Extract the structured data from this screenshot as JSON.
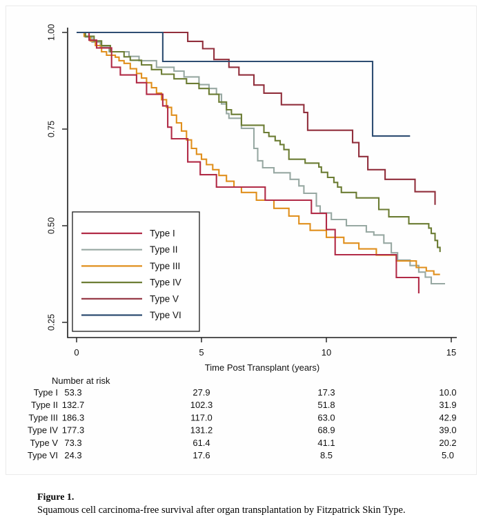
{
  "figure": {
    "caption_label": "Figure 1.",
    "caption_text": "Squamous cell carcinoma-free survival after organ transplantation by Fitzpatrick Skin Type."
  },
  "chart_data": {
    "type": "line",
    "subtype": "kaplan-meier-step-survival",
    "title": "",
    "xlabel": "Time Post Transplant (years)",
    "ylabel": "",
    "xlim": [
      0,
      15
    ],
    "ylim": [
      0.21,
      1.0
    ],
    "x_ticks": [
      0,
      5,
      10,
      15
    ],
    "y_ticks": [
      0.25,
      0.5,
      0.75,
      1.0
    ],
    "y_tick_labels": [
      "0.25",
      "0.50",
      "0.75",
      "1.00"
    ],
    "grid": false,
    "legend_position": "inside-lower-left",
    "axis_color": "#1a1a1a",
    "series": [
      {
        "name": "Type I",
        "color": "#b12a46",
        "end_x": 13.7,
        "points": [
          [
            0,
            1.0
          ],
          [
            0.5,
            0.98
          ],
          [
            0.8,
            0.96
          ],
          [
            1.4,
            0.91
          ],
          [
            1.75,
            0.89
          ],
          [
            2.4,
            0.87
          ],
          [
            2.8,
            0.84
          ],
          [
            3.45,
            0.81
          ],
          [
            3.65,
            0.755
          ],
          [
            3.8,
            0.725
          ],
          [
            4.45,
            0.665
          ],
          [
            4.95,
            0.632
          ],
          [
            5.6,
            0.6
          ],
          [
            7.55,
            0.566
          ],
          [
            9.4,
            0.532
          ],
          [
            10.0,
            0.49
          ],
          [
            10.35,
            0.425
          ],
          [
            12.8,
            0.366
          ],
          [
            13.7,
            0.325
          ]
        ]
      },
      {
        "name": "Type II",
        "color": "#97a8a2",
        "end_x": 14.75,
        "points": [
          [
            0,
            1.0
          ],
          [
            0.35,
            0.988
          ],
          [
            0.62,
            0.975
          ],
          [
            0.95,
            0.962
          ],
          [
            1.3,
            0.95
          ],
          [
            2.1,
            0.938
          ],
          [
            2.5,
            0.927
          ],
          [
            3.2,
            0.91
          ],
          [
            3.9,
            0.9
          ],
          [
            4.3,
            0.885
          ],
          [
            4.9,
            0.865
          ],
          [
            5.3,
            0.855
          ],
          [
            5.6,
            0.84
          ],
          [
            5.8,
            0.815
          ],
          [
            6.0,
            0.79
          ],
          [
            6.1,
            0.778
          ],
          [
            6.6,
            0.752
          ],
          [
            7.1,
            0.7
          ],
          [
            7.25,
            0.668
          ],
          [
            7.45,
            0.65
          ],
          [
            7.9,
            0.637
          ],
          [
            8.55,
            0.62
          ],
          [
            8.9,
            0.603
          ],
          [
            9.1,
            0.584
          ],
          [
            9.6,
            0.551
          ],
          [
            9.75,
            0.533
          ],
          [
            10.2,
            0.516
          ],
          [
            10.8,
            0.5
          ],
          [
            11.6,
            0.484
          ],
          [
            11.9,
            0.476
          ],
          [
            12.3,
            0.455
          ],
          [
            12.6,
            0.43
          ],
          [
            12.85,
            0.411
          ],
          [
            13.35,
            0.397
          ],
          [
            13.7,
            0.38
          ],
          [
            13.96,
            0.367
          ],
          [
            14.2,
            0.35
          ]
        ]
      },
      {
        "name": "Type III",
        "color": "#e08f1c",
        "end_x": 14.55,
        "points": [
          [
            0,
            1.0
          ],
          [
            0.3,
            0.99
          ],
          [
            0.55,
            0.978
          ],
          [
            0.75,
            0.966
          ],
          [
            1.0,
            0.95
          ],
          [
            1.2,
            0.941
          ],
          [
            1.55,
            0.936
          ],
          [
            1.7,
            0.927
          ],
          [
            1.9,
            0.92
          ],
          [
            2.15,
            0.906
          ],
          [
            2.4,
            0.894
          ],
          [
            2.6,
            0.882
          ],
          [
            2.8,
            0.87
          ],
          [
            3.0,
            0.857
          ],
          [
            3.2,
            0.843
          ],
          [
            3.4,
            0.826
          ],
          [
            3.6,
            0.806
          ],
          [
            3.8,
            0.786
          ],
          [
            4.0,
            0.766
          ],
          [
            4.2,
            0.745
          ],
          [
            4.4,
            0.722
          ],
          [
            4.6,
            0.7
          ],
          [
            4.8,
            0.685
          ],
          [
            5.0,
            0.672
          ],
          [
            5.2,
            0.658
          ],
          [
            5.45,
            0.645
          ],
          [
            5.7,
            0.63
          ],
          [
            6.0,
            0.615
          ],
          [
            6.3,
            0.6
          ],
          [
            6.6,
            0.586
          ],
          [
            7.2,
            0.566
          ],
          [
            7.9,
            0.545
          ],
          [
            8.5,
            0.525
          ],
          [
            8.9,
            0.505
          ],
          [
            9.35,
            0.488
          ],
          [
            10.0,
            0.47
          ],
          [
            10.7,
            0.455
          ],
          [
            11.3,
            0.44
          ],
          [
            12.0,
            0.424
          ],
          [
            12.8,
            0.409
          ],
          [
            13.6,
            0.392
          ],
          [
            14.0,
            0.383
          ],
          [
            14.3,
            0.374
          ]
        ]
      },
      {
        "name": "Type IV",
        "color": "#6b7c33",
        "end_x": 14.55,
        "points": [
          [
            0,
            1.0
          ],
          [
            0.35,
            0.99
          ],
          [
            0.7,
            0.978
          ],
          [
            1.0,
            0.966
          ],
          [
            1.35,
            0.95
          ],
          [
            1.9,
            0.937
          ],
          [
            2.15,
            0.928
          ],
          [
            2.6,
            0.916
          ],
          [
            3.0,
            0.904
          ],
          [
            3.4,
            0.892
          ],
          [
            3.9,
            0.88
          ],
          [
            4.4,
            0.868
          ],
          [
            4.9,
            0.855
          ],
          [
            5.3,
            0.84
          ],
          [
            5.7,
            0.82
          ],
          [
            6.0,
            0.8
          ],
          [
            6.2,
            0.788
          ],
          [
            6.6,
            0.76
          ],
          [
            7.5,
            0.741
          ],
          [
            7.7,
            0.731
          ],
          [
            7.95,
            0.72
          ],
          [
            8.15,
            0.71
          ],
          [
            8.3,
            0.697
          ],
          [
            8.5,
            0.672
          ],
          [
            9.15,
            0.662
          ],
          [
            9.7,
            0.652
          ],
          [
            9.8,
            0.638
          ],
          [
            10.05,
            0.625
          ],
          [
            10.3,
            0.612
          ],
          [
            10.45,
            0.6
          ],
          [
            10.6,
            0.586
          ],
          [
            11.2,
            0.572
          ],
          [
            12.1,
            0.542
          ],
          [
            12.5,
            0.523
          ],
          [
            13.3,
            0.505
          ],
          [
            14.1,
            0.494
          ],
          [
            14.2,
            0.48
          ],
          [
            14.35,
            0.462
          ],
          [
            14.45,
            0.444
          ],
          [
            14.55,
            0.432
          ]
        ]
      },
      {
        "name": "Type V",
        "color": "#912f3c",
        "end_x": 14.35,
        "points": [
          [
            0,
            1.0
          ],
          [
            4.45,
            0.977
          ],
          [
            5.05,
            0.958
          ],
          [
            5.5,
            0.93
          ],
          [
            6.1,
            0.91
          ],
          [
            6.5,
            0.89
          ],
          [
            7.1,
            0.864
          ],
          [
            7.5,
            0.843
          ],
          [
            8.2,
            0.813
          ],
          [
            9.1,
            0.793
          ],
          [
            9.25,
            0.747
          ],
          [
            11.05,
            0.715
          ],
          [
            11.3,
            0.679
          ],
          [
            11.66,
            0.645
          ],
          [
            12.35,
            0.62
          ],
          [
            13.55,
            0.588
          ],
          [
            14.35,
            0.554
          ]
        ]
      },
      {
        "name": "Type VI",
        "color": "#2e4d72",
        "end_x": 13.35,
        "points": [
          [
            0,
            1.0
          ],
          [
            3.45,
            0.925
          ],
          [
            11.85,
            0.732
          ]
        ]
      }
    ]
  },
  "risk_table": {
    "title": "Number at risk",
    "time_points": [
      0,
      5,
      10,
      15
    ],
    "rows": [
      {
        "label": "Type I",
        "values": [
          "53.3",
          "27.9",
          "17.3",
          "10.0"
        ]
      },
      {
        "label": "Type II",
        "values": [
          "132.7",
          "102.3",
          "51.8",
          "31.9"
        ]
      },
      {
        "label": "Type III",
        "values": [
          "186.3",
          "117.0",
          "63.0",
          "42.9"
        ]
      },
      {
        "label": "Type IV",
        "values": [
          "177.3",
          "131.2",
          "68.9",
          "39.0"
        ]
      },
      {
        "label": "Type V",
        "values": [
          "73.3",
          "61.4",
          "41.1",
          "20.2"
        ]
      },
      {
        "label": "Type VI",
        "values": [
          "24.3",
          "17.6",
          "8.5",
          "5.0"
        ]
      }
    ]
  }
}
